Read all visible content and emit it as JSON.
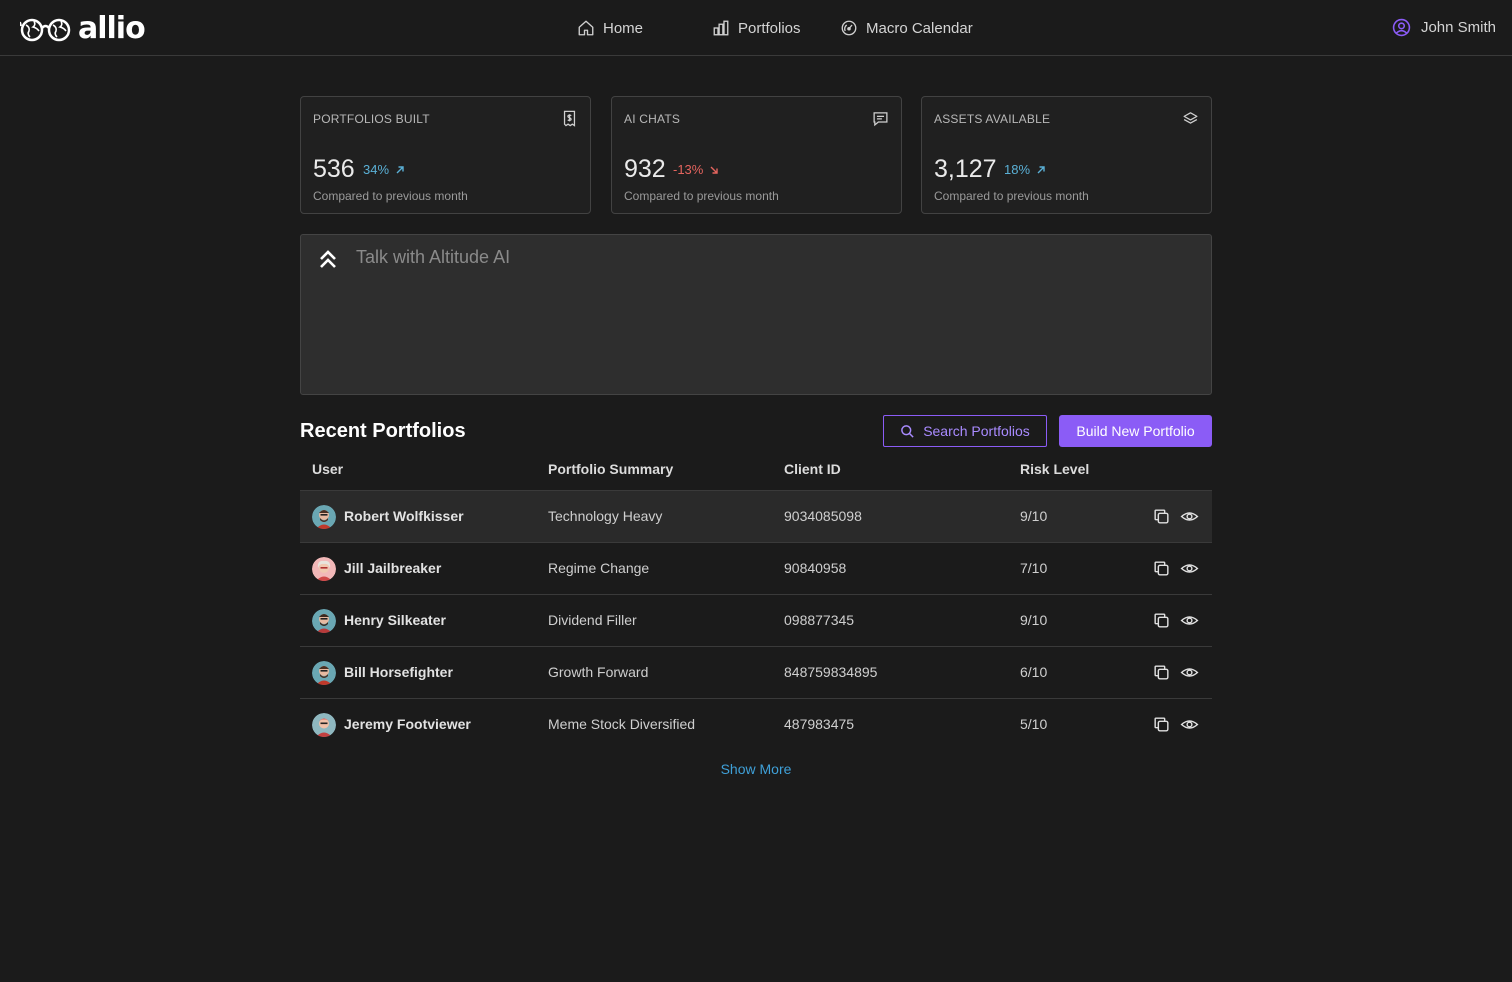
{
  "brand": {
    "name": "allio"
  },
  "nav": {
    "home": "Home",
    "portfolios": "Portfolios",
    "macro_calendar": "Macro Calendar",
    "user_name": "John Smith"
  },
  "stats": [
    {
      "title": "PORTFOLIOS BUILT",
      "icon": "receipt-dollar-icon",
      "value": "536",
      "delta": "34%",
      "direction": "up",
      "caption": "Compared to previous month"
    },
    {
      "title": "AI CHATS",
      "icon": "chat-message-icon",
      "value": "932",
      "delta": "-13%",
      "direction": "down",
      "caption": "Compared to previous month"
    },
    {
      "title": "ASSETS AVAILABLE",
      "icon": "layers-icon",
      "value": "3,127",
      "delta": "18%",
      "direction": "up",
      "caption": "Compared to previous month"
    }
  ],
  "ai": {
    "placeholder": "Talk with Altitude AI"
  },
  "recent": {
    "title": "Recent Portfolios",
    "search_label": "Search Portfolios",
    "build_label": "Build New Portfolio",
    "columns": [
      "User",
      "Portfolio Summary",
      "Client ID",
      "Risk Level"
    ],
    "rows": [
      {
        "user": "Robert Wolfkisser",
        "summary": "Technology Heavy",
        "client_id": "9034085098",
        "risk": "9/10"
      },
      {
        "user": "Jill Jailbreaker",
        "summary": "Regime Change",
        "client_id": "90840958",
        "risk": "7/10"
      },
      {
        "user": "Henry Silkeater",
        "summary": "Dividend Filler",
        "client_id": "098877345",
        "risk": "9/10"
      },
      {
        "user": "Bill Horsefighter",
        "summary": "Growth Forward",
        "client_id": "848759834895",
        "risk": "6/10"
      },
      {
        "user": "Jeremy Footviewer",
        "summary": "Meme Stock Diversified",
        "client_id": "487983475",
        "risk": "5/10"
      }
    ],
    "show_more": "Show More"
  },
  "colors": {
    "background": "#1b1b1b",
    "accent": "#8b5cf6",
    "positive": "#5ab0d6",
    "negative": "#e5645e",
    "link": "#3fa0d8"
  }
}
